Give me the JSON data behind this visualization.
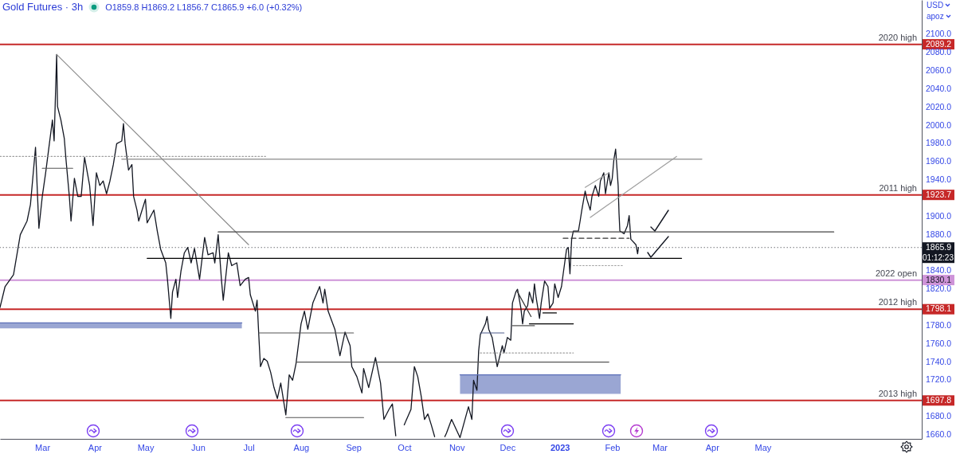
{
  "chart_data": {
    "type": "line",
    "title": "Gold Futures · 3h",
    "subtitle": "O1859.8 H1869.2 L1856.7 C1865.9 +6.0 (+0.32%)",
    "annotations": [
      "USD",
      "apoz",
      "01:12:23"
    ],
    "xlim": [
      "2022-02-04",
      "2023-08-03"
    ],
    "xticks": [
      {
        "value": "2022-03-01",
        "label": "Mar"
      },
      {
        "value": "2022-04-01",
        "label": "Apr"
      },
      {
        "value": "2022-05-01",
        "label": "May"
      },
      {
        "value": "2022-06-01",
        "label": "Jun"
      },
      {
        "value": "2022-07-01",
        "label": "Jul"
      },
      {
        "value": "2022-08-01",
        "label": "Aug"
      },
      {
        "value": "2022-09-01",
        "label": "Sep"
      },
      {
        "value": "2022-10-01",
        "label": "Oct"
      },
      {
        "value": "2022-11-01",
        "label": "Nov"
      },
      {
        "value": "2022-12-01",
        "label": "Dec"
      },
      {
        "value": "2023-01-01",
        "label": "2023"
      },
      {
        "value": "2023-02-01",
        "label": "Feb"
      },
      {
        "value": "2023-03-01",
        "label": "Mar"
      },
      {
        "value": "2023-04-01",
        "label": "Apr"
      },
      {
        "value": "2023-05-01",
        "label": "May"
      }
    ],
    "ylim": [
      1655.6,
      2137.9
    ],
    "yticks": [
      {
        "value": 1660,
        "label": "1660.0"
      },
      {
        "value": 1680,
        "label": "1680.0"
      },
      1697.8,
      {
        "value": 1720,
        "label": "1720.0"
      },
      {
        "value": 1740,
        "label": "1740.0"
      },
      {
        "value": 1760,
        "label": "1760.0"
      },
      {
        "value": 1780,
        "label": "1780.0"
      },
      1798.1,
      {
        "value": 1820,
        "label": "1820.0"
      },
      1830.1,
      {
        "value": 1840,
        "label": "1840.0"
      },
      1865.9,
      {
        "value": 1880,
        "label": "1880.0"
      },
      {
        "value": 1900,
        "label": "1900.0"
      },
      1923.7,
      {
        "value": 1940,
        "label": "1940.0"
      },
      {
        "value": 1960,
        "label": "1960.0"
      },
      {
        "value": 1980,
        "label": "1980.0"
      },
      {
        "value": 2000,
        "label": "2000.0"
      },
      {
        "value": 2020,
        "label": "2020.0"
      },
      {
        "value": 2040,
        "label": "2040.0"
      },
      {
        "value": 2060,
        "label": "2060.0"
      },
      {
        "value": 2080,
        "label": "2080.0"
      },
      2089.2,
      {
        "value": 2100,
        "label": "2100.0"
      }
    ],
    "series": [
      {
        "color": "#131722",
        "x": [
          "2022-02-04",
          "2022-02-07",
          "2022-02-12",
          "2022-02-16",
          "2022-02-20",
          "2022-02-22",
          "2022-02-25",
          "2022-02-27",
          "2022-03-01",
          "2022-03-03",
          "2022-03-07",
          "2022-03-08",
          "2022-03-09T12:00",
          "2022-03-10",
          "2022-03-12",
          "2022-03-14",
          "2022-03-15",
          "2022-03-17",
          "2022-03-18",
          "2022-03-20",
          "2022-03-22",
          "2022-03-24",
          "2022-03-26",
          "2022-03-29",
          "2022-03-31",
          "2022-04-02",
          "2022-04-04",
          "2022-04-06",
          "2022-04-08",
          "2022-04-10",
          "2022-04-12",
          "2022-04-14",
          "2022-04-17",
          "2022-04-18",
          "2022-04-19",
          "2022-04-21",
          "2022-04-23",
          "2022-04-24",
          "2022-04-26",
          "2022-04-27",
          "2022-05-01",
          "2022-05-02",
          "2022-05-06",
          "2022-05-08",
          "2022-05-10",
          "2022-05-13",
          "2022-05-14",
          "2022-05-16",
          "2022-05-17",
          "2022-05-19",
          "2022-05-20",
          "2022-05-22",
          "2022-05-24",
          "2022-05-26",
          "2022-05-28",
          "2022-05-30",
          "2022-06-02",
          "2022-06-05",
          "2022-06-07",
          "2022-06-10",
          "2022-06-11",
          "2022-06-13",
          "2022-06-15",
          "2022-06-16",
          "2022-06-19",
          "2022-06-21",
          "2022-06-24",
          "2022-06-26",
          "2022-06-29",
          "2022-07-01",
          "2022-07-02",
          "2022-07-05",
          "2022-07-06",
          "2022-07-07",
          "2022-07-08",
          "2022-07-10",
          "2022-07-12",
          "2022-07-14",
          "2022-07-16",
          "2022-07-18",
          "2022-07-20",
          "2022-07-23",
          "2022-07-25",
          "2022-07-27",
          "2022-07-29",
          "2022-08-01",
          "2022-08-03",
          "2022-08-05",
          "2022-08-08",
          "2022-08-12",
          "2022-08-14",
          "2022-08-15",
          "2022-08-17",
          "2022-08-21",
          "2022-08-24",
          "2022-08-27",
          "2022-08-30",
          "2022-08-31",
          "2022-09-03",
          "2022-09-06",
          "2022-09-07",
          "2022-09-10",
          "2022-09-14",
          "2022-09-17",
          "2022-09-19",
          "2022-09-22",
          "2022-09-24",
          "2022-09-26",
          "2022-09-29",
          "2022-10-01",
          "2022-10-05",
          "2022-10-07",
          "2022-10-09",
          "2022-10-11",
          "2022-10-13",
          "2022-10-15",
          "2022-10-17",
          "2022-10-19",
          "2022-10-23",
          "2022-10-25",
          "2022-10-26",
          "2022-10-29",
          "2022-11-01",
          "2022-11-03",
          "2022-11-08",
          "2022-11-10",
          "2022-11-11",
          "2022-11-13",
          "2022-11-14",
          "2022-11-15",
          "2022-11-18",
          "2022-11-19",
          "2022-11-20",
          "2022-11-22",
          "2022-11-25",
          "2022-11-28",
          "2022-11-29",
          "2022-12-01",
          "2022-12-03",
          "2022-12-04",
          "2022-12-06",
          "2022-12-07",
          "2022-12-09",
          "2022-12-10",
          "2022-12-11",
          "2022-12-13",
          "2022-12-14",
          "2022-12-16",
          "2022-12-17",
          "2022-12-18",
          "2022-12-20",
          "2022-12-21",
          "2022-12-23",
          "2022-12-25",
          "2022-12-26",
          "2022-12-28",
          "2022-12-29",
          "2022-12-31",
          "2023-01-02",
          "2023-01-03",
          "2023-01-05",
          "2023-01-06",
          "2023-01-07",
          "2023-01-08",
          "2023-01-09",
          "2023-01-12",
          "2023-01-13",
          "2023-01-14",
          "2023-01-16",
          "2023-01-17",
          "2023-01-19",
          "2023-01-20",
          "2023-01-22",
          "2023-01-24",
          "2023-01-25",
          "2023-01-27",
          "2023-01-28",
          "2023-01-30",
          "2023-01-31",
          "2023-02-01",
          "2023-02-02",
          "2023-02-03",
          "2023-02-04T12:00",
          "2023-02-05",
          "2023-02-05T12:00",
          "2023-02-08",
          "2023-02-10",
          "2023-02-11",
          "2023-02-12",
          "2023-02-15",
          "2023-02-16",
          "2023-02-16T12:00"
        ],
        "values": [
          1800,
          1823,
          1836,
          1880,
          1895,
          1913,
          1976,
          1887,
          1922,
          1948,
          2006,
          1983,
          2078,
          2021,
          2006,
          1986,
          1963,
          1922,
          1895,
          1942,
          1922,
          1922,
          1965,
          1934,
          1890,
          1948,
          1934,
          1939,
          1925,
          1939,
          1957,
          1980,
          1983,
          2002,
          1980,
          1951,
          1957,
          1922,
          1907,
          1895,
          1919,
          1893,
          1907,
          1884,
          1864,
          1849,
          1831,
          1788,
          1817,
          1831,
          1811,
          1840,
          1860,
          1866,
          1849,
          1865,
          1831,
          1877,
          1858,
          1860,
          1849,
          1880,
          1829,
          1808,
          1860,
          1846,
          1849,
          1824,
          1831,
          1833,
          1814,
          1796,
          1808,
          1770,
          1735,
          1744,
          1741,
          1729,
          1712,
          1700,
          1717,
          1682,
          1726,
          1720,
          1738,
          1782,
          1796,
          1776,
          1805,
          1823,
          1805,
          1820,
          1796,
          1776,
          1747,
          1773,
          1758,
          1735,
          1724,
          1706,
          1733,
          1712,
          1745,
          1717,
          1677,
          1688,
          1694,
          1659,
          null,
          1671,
          1688,
          1735,
          1724,
          1703,
          1677,
          1683,
          1671,
          1658,
          null,
          1658,
          1662,
          1677,
          1665,
          1657,
          1691,
          1677,
          1720,
          1709,
          1752,
          1770,
          1782,
          1790,
          1776,
          1767,
          1735,
          1758,
          1750,
          1767,
          1764,
          1805,
          1817,
          1820,
          1799,
          1782,
          1796,
          1802,
          1817,
          1805,
          1826,
          1811,
          1788,
          1805,
          1829,
          1823,
          1799,
          1805,
          1826,
          1811,
          1823,
          1837,
          1864,
          1866,
          1837,
          1875,
          1884,
          1884,
          1895,
          1907,
          1928,
          1919,
          1907,
          1922,
          1934,
          1922,
          1939,
          1948,
          1925,
          1948,
          1934,
          1942,
          1963,
          1974,
          1934,
          1904,
          1884,
          1881,
          1890,
          1901,
          1875,
          1869,
          1859,
          1865.9
        ]
      },
      {
        "color": "#8c8c8c",
        "x": [
          "2022-03-09T12:00",
          "2022-07-01"
        ],
        "values": [
          2078,
          1869
        ]
      },
      {
        "color": "#9e9e9e",
        "line_style": "dotted",
        "x": [
          "2022-02-04",
          "2022-07-11"
        ],
        "values": [
          1966,
          1966
        ]
      },
      {
        "color": "#555555",
        "x": [
          "2022-03-01",
          "2022-03-19"
        ],
        "values": [
          1953,
          1953
        ]
      },
      {
        "color": "#8a8a8a",
        "x": [
          "2022-04-17",
          "2023-03-26"
        ],
        "values": [
          1963,
          1963
        ]
      },
      {
        "color": "#9e9e9e",
        "x": [
          "2023-01-19",
          "2023-03-11"
        ],
        "values": [
          1899,
          1966
        ]
      },
      {
        "color": "#9e9e9e",
        "x": [
          "2023-01-16",
          "2023-01-30"
        ],
        "values": [
          1932,
          1948
        ]
      },
      {
        "color": "#444444",
        "x": [
          "2022-06-13",
          "2023-06-12"
        ],
        "values": [
          1883,
          1883
        ]
      },
      {
        "color": "#000000",
        "x": [
          "2022-05-02",
          "2023-03-14"
        ],
        "values": [
          1854,
          1854
        ]
      },
      {
        "color": "#333333",
        "line_style": "dashed",
        "x": [
          "2023-01-03",
          "2023-02-11"
        ],
        "values": [
          1876,
          1876
        ]
      },
      {
        "color": "#9e9e9e",
        "line_style": "dotted",
        "x": [
          "2023-01-09",
          "2023-02-07"
        ],
        "values": [
          1846,
          1846
        ]
      },
      {
        "color": "#555555",
        "x": [
          "2022-07-07",
          "2022-09-01"
        ],
        "values": [
          1772,
          1772
        ]
      },
      {
        "color": "#555555",
        "x": [
          "2022-07-29",
          "2023-01-30"
        ],
        "values": [
          1740,
          1740
        ]
      },
      {
        "color": "#555555",
        "x": [
          "2022-07-23",
          "2022-09-07"
        ],
        "values": [
          1679,
          1679
        ]
      },
      {
        "color": "#4f5d8c",
        "x": [
          "2022-11-15",
          "2022-11-29"
        ],
        "values": [
          1772,
          1772
        ]
      },
      {
        "color": "#9e9e9e",
        "line_style": "dotted",
        "x": [
          "2022-11-15",
          "2023-01-09"
        ],
        "values": [
          1750,
          1750
        ]
      },
      {
        "color": "#555555",
        "x": [
          "2022-12-04",
          "2022-12-17"
        ],
        "values": [
          1780,
          1780
        ]
      },
      {
        "color": "#000000",
        "x": [
          "2022-12-14",
          "2023-01-09"
        ],
        "values": [
          1782,
          1782
        ]
      },
      {
        "color": "#000000",
        "x": [
          "2022-12-22",
          "2022-12-30"
        ],
        "values": [
          1794,
          1794
        ]
      },
      {
        "color": "#333333",
        "x": [
          "2022-12-07",
          "2022-12-15"
        ],
        "values": [
          1817,
          1790
        ]
      },
      {
        "color": "#5c6fb8",
        "x": [
          "2022-02-04",
          "2022-06-27"
        ],
        "values": [
          1783,
          1783
        ],
        "lower": [
          1777,
          1777
        ],
        "upper": [
          1783,
          1783
        ]
      },
      {
        "color": "#5c6fb8",
        "x": [
          "2022-11-03",
          "2023-02-06"
        ],
        "values": [
          1726,
          1726
        ],
        "lower": [
          1705,
          1705
        ],
        "upper": [
          1726,
          1726
        ]
      }
    ],
    "ref_lines": [
      {
        "axis": "y",
        "value": 2089.2,
        "label": "2020 high",
        "color": "#c62828"
      },
      {
        "axis": "y",
        "value": 1923.7,
        "label": "2011 high",
        "color": "#c62828"
      },
      {
        "axis": "y",
        "value": 1830.1,
        "label": "2022 open",
        "color": "#ce93d8"
      },
      {
        "axis": "y",
        "value": 1798.1,
        "label": "2012 high",
        "color": "#c62828"
      },
      {
        "axis": "y",
        "value": 1697.8,
        "label": "2013 high",
        "color": "#c62828"
      },
      {
        "axis": "y",
        "value": 1865.9,
        "color": "#131722",
        "line_style": "dotted"
      }
    ]
  }
}
